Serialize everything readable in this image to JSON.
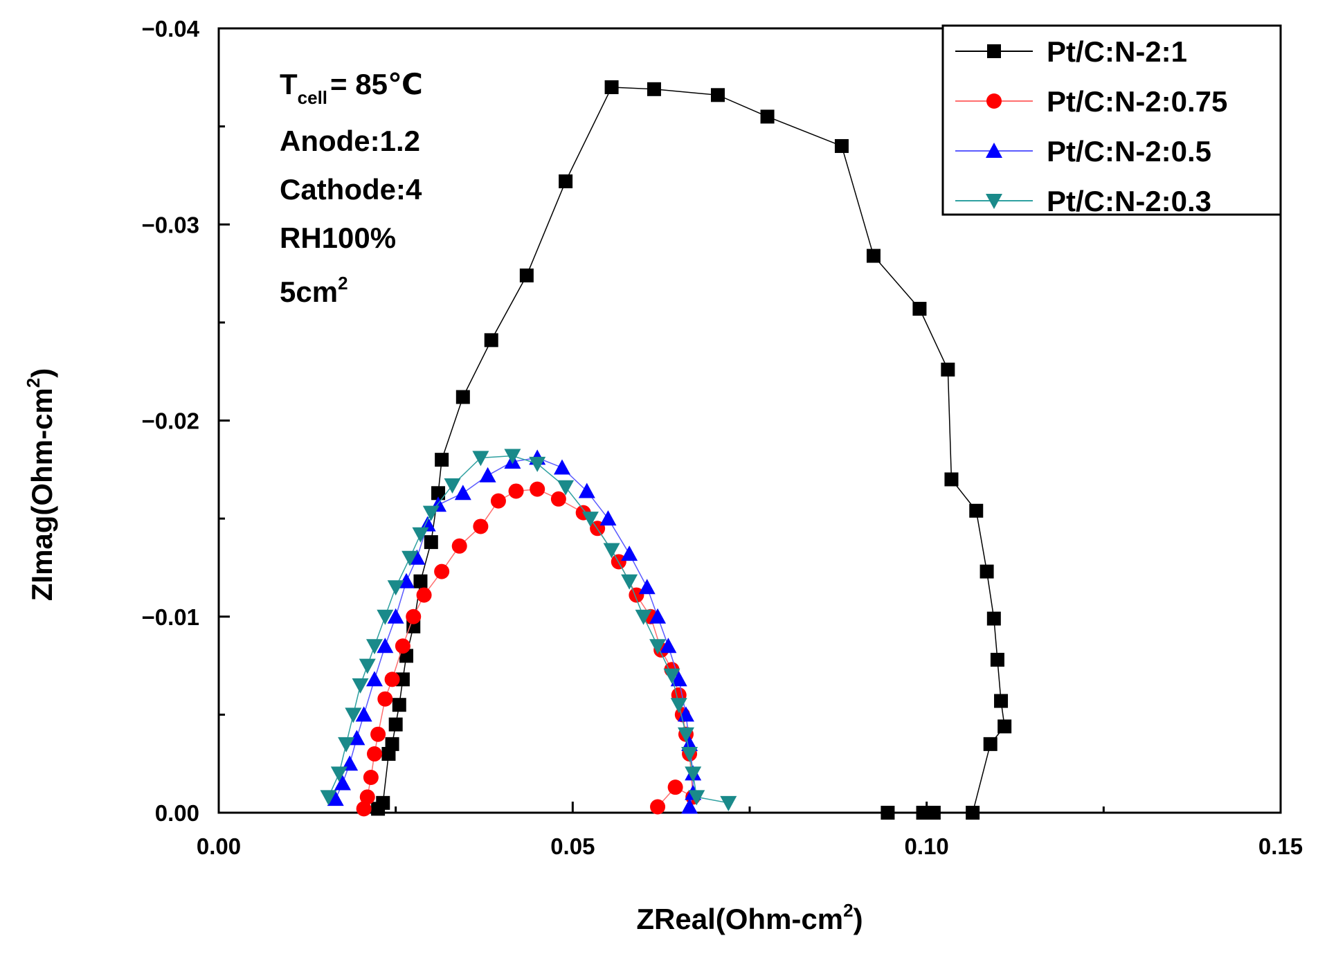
{
  "chart_data": {
    "type": "scatter",
    "title": "",
    "xlabel": "ZReal(Ohm-cm",
    "xlabel_sup": "2",
    "xlabel_suffix": ")",
    "ylabel": "ZImag(Ohm-cm",
    "ylabel_sup": "2",
    "ylabel_suffix": ")",
    "xlim": [
      0,
      0.15
    ],
    "ylim": [
      0,
      -0.04
    ],
    "x_ticks": [
      0.0,
      0.05,
      0.1,
      0.15
    ],
    "x_tick_labels": [
      "0.00",
      "0.05",
      "0.10",
      "0.15"
    ],
    "y_ticks": [
      0.0,
      -0.01,
      -0.02,
      -0.03,
      -0.04
    ],
    "y_tick_labels": [
      "0.00",
      "−0.01",
      "−0.02",
      "−0.03",
      "−0.04"
    ],
    "grid": false,
    "legend_position": "top-right",
    "annotations": {
      "tcell_T": "T",
      "tcell_sub": "cell",
      "tcell_rest": "= 85℃",
      "anode": "Anode:1.2",
      "cathode": "Cathode:4",
      "rh": "RH100%",
      "area_main": "5cm",
      "area_sup": "2"
    },
    "series": [
      {
        "name": "Pt/C:N-2:1",
        "marker": "square",
        "color": "#000000",
        "line_color": "#000000",
        "x": [
          0.0225,
          0.0232,
          0.024,
          0.0245,
          0.025,
          0.0255,
          0.026,
          0.0265,
          0.0275,
          0.0285,
          0.03,
          0.031,
          0.0315,
          0.0345,
          0.0385,
          0.0435,
          0.049,
          0.0555,
          0.0615,
          0.0705,
          0.0775,
          0.088,
          0.0925,
          0.099,
          0.103,
          0.1035,
          0.107,
          0.1085,
          0.1095,
          0.11,
          0.1105,
          0.111,
          0.109,
          0.1065,
          0.101,
          0.0995,
          0.0945
        ],
        "y": [
          -0.0002,
          -0.0005,
          -0.003,
          -0.0035,
          -0.0045,
          -0.0055,
          -0.0068,
          -0.008,
          -0.0095,
          -0.0118,
          -0.0138,
          -0.0163,
          -0.018,
          -0.0212,
          -0.0241,
          -0.0274,
          -0.0322,
          -0.037,
          -0.0369,
          -0.0366,
          -0.0355,
          -0.034,
          -0.0284,
          -0.0257,
          -0.0226,
          -0.017,
          -0.0154,
          -0.0123,
          -0.0099,
          -0.0078,
          -0.0057,
          -0.0044,
          -0.0035,
          0.0,
          0.0,
          0.0,
          0.0
        ]
      },
      {
        "name": "Pt/C:N-2:0.75",
        "marker": "circle",
        "color": "#ff0000",
        "line_color": "#ff6e6e",
        "x": [
          0.0205,
          0.021,
          0.0215,
          0.022,
          0.0225,
          0.0235,
          0.0245,
          0.026,
          0.0275,
          0.029,
          0.0315,
          0.034,
          0.037,
          0.0395,
          0.042,
          0.045,
          0.048,
          0.0515,
          0.0535,
          0.0565,
          0.059,
          0.061,
          0.0625,
          0.064,
          0.065,
          0.0655,
          0.066,
          0.0665,
          0.067,
          0.0645,
          0.062
        ],
        "y": [
          -0.0002,
          -0.0008,
          -0.0018,
          -0.003,
          -0.004,
          -0.0058,
          -0.0068,
          -0.0085,
          -0.01,
          -0.0111,
          -0.0123,
          -0.0136,
          -0.0146,
          -0.0159,
          -0.0164,
          -0.0165,
          -0.016,
          -0.0153,
          -0.0145,
          -0.0128,
          -0.0111,
          -0.01,
          -0.0083,
          -0.0073,
          -0.006,
          -0.005,
          -0.004,
          -0.003,
          -0.0008,
          -0.0013,
          -0.0003
        ]
      },
      {
        "name": "Pt/C:N-2:0.5",
        "marker": "triangle-up",
        "color": "#0000ff",
        "line_color": "#5a5aff",
        "x": [
          0.0165,
          0.0175,
          0.0185,
          0.0195,
          0.0205,
          0.022,
          0.0235,
          0.025,
          0.0265,
          0.028,
          0.0295,
          0.031,
          0.0345,
          0.038,
          0.0415,
          0.045,
          0.0485,
          0.052,
          0.055,
          0.058,
          0.0605,
          0.062,
          0.0635,
          0.065,
          0.066,
          0.0665,
          0.067,
          0.067,
          0.0665
        ],
        "y": [
          -0.0007,
          -0.0015,
          -0.0025,
          -0.0038,
          -0.005,
          -0.0068,
          -0.0085,
          -0.01,
          -0.0118,
          -0.013,
          -0.0147,
          -0.0157,
          -0.0163,
          -0.0172,
          -0.0179,
          -0.0181,
          -0.0176,
          -0.0164,
          -0.015,
          -0.0132,
          -0.0115,
          -0.01,
          -0.0085,
          -0.0068,
          -0.005,
          -0.0035,
          -0.002,
          -0.001,
          -0.0003
        ]
      },
      {
        "name": "Pt/C:N-2:0.3",
        "marker": "triangle-down",
        "color": "#1a8a8a",
        "line_color": "#2ea0a0",
        "x": [
          0.0155,
          0.017,
          0.018,
          0.019,
          0.02,
          0.021,
          0.022,
          0.0235,
          0.025,
          0.027,
          0.0285,
          0.03,
          0.033,
          0.037,
          0.0415,
          0.045,
          0.049,
          0.0525,
          0.0555,
          0.058,
          0.06,
          0.062,
          0.064,
          0.065,
          0.066,
          0.0665,
          0.067,
          0.0675,
          0.072
        ],
        "y": [
          -0.0008,
          -0.002,
          -0.0035,
          -0.005,
          -0.0065,
          -0.0075,
          -0.0085,
          -0.01,
          -0.0115,
          -0.013,
          -0.0142,
          -0.0153,
          -0.0167,
          -0.0181,
          -0.0182,
          -0.0178,
          -0.0166,
          -0.015,
          -0.0134,
          -0.0118,
          -0.01,
          -0.0085,
          -0.007,
          -0.0055,
          -0.004,
          -0.003,
          -0.002,
          -0.0008,
          -0.0005
        ]
      }
    ]
  }
}
